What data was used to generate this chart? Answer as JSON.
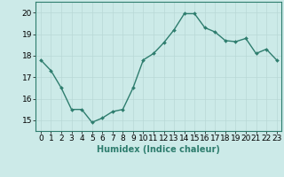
{
  "x": [
    0,
    1,
    2,
    3,
    4,
    5,
    6,
    7,
    8,
    9,
    10,
    11,
    12,
    13,
    14,
    15,
    16,
    17,
    18,
    19,
    20,
    21,
    22,
    23
  ],
  "y": [
    17.8,
    17.3,
    16.5,
    15.5,
    15.5,
    14.9,
    15.1,
    15.4,
    15.5,
    16.5,
    17.8,
    18.1,
    18.6,
    19.2,
    19.95,
    19.95,
    19.3,
    19.1,
    18.7,
    18.65,
    18.8,
    18.1,
    18.3,
    17.8
  ],
  "line_color": "#2e7d6e",
  "marker": "D",
  "marker_size": 2.0,
  "line_width": 1.0,
  "bg_color": "#cceae8",
  "grid_color": "#b8d8d6",
  "xlabel": "Humidex (Indice chaleur)",
  "xlabel_fontsize": 7,
  "tick_fontsize": 6.5,
  "ylim": [
    14.5,
    20.5
  ],
  "xlim": [
    -0.5,
    23.5
  ],
  "yticks": [
    15,
    16,
    17,
    18,
    19,
    20
  ],
  "xticks": [
    0,
    1,
    2,
    3,
    4,
    5,
    6,
    7,
    8,
    9,
    10,
    11,
    12,
    13,
    14,
    15,
    16,
    17,
    18,
    19,
    20,
    21,
    22,
    23
  ]
}
